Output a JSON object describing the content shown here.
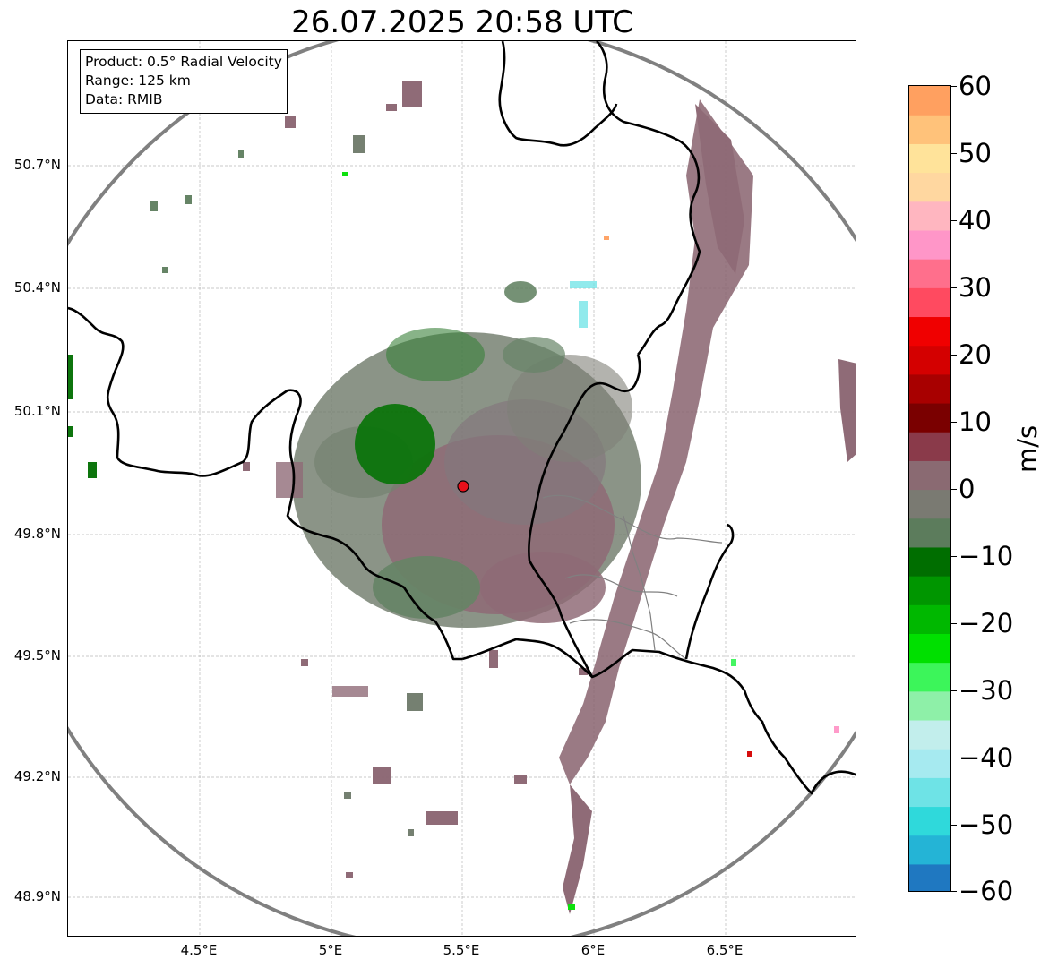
{
  "title": "26.07.2025 20:58 UTC",
  "info": {
    "product": "Product: 0.5° Radial Velocity",
    "range": "Range: 125 km",
    "data": "Data: RMIB"
  },
  "axes": {
    "lat_labels": [
      "50.7°N",
      "50.4°N",
      "50.1°N",
      "49.8°N",
      "49.5°N",
      "49.2°N",
      "48.9°N"
    ],
    "lon_labels": [
      "4.5°E",
      "5°E",
      "5.5°E",
      "6°E",
      "6.5°E"
    ]
  },
  "colorbar": {
    "unit": "m/s",
    "ticks": [
      "60",
      "50",
      "40",
      "30",
      "20",
      "10",
      "0",
      "−10",
      "−20",
      "−30",
      "−40",
      "−50",
      "−60"
    ],
    "range": [
      -60,
      60
    ],
    "colors_bottom_to_top": [
      "#1f78c1",
      "#24b4d6",
      "#2fd9db",
      "#6ee3e6",
      "#a6eaf0",
      "#c2eeec",
      "#8ef0a8",
      "#3cf55a",
      "#00e000",
      "#00b800",
      "#009600",
      "#006e00",
      "#5c7c5c",
      "#7a7a72",
      "#8a6a72",
      "#8a3a4a",
      "#7a0000",
      "#a80000",
      "#d40000",
      "#f00000",
      "#ff4a60",
      "#ff6f8c",
      "#ff96c8",
      "#ffb6c0",
      "#ffd7a0",
      "#ffe39a",
      "#ffc27a",
      "#ffa060"
    ]
  },
  "map": {
    "radar_site": {
      "lat": 49.91,
      "lon": 5.51,
      "color": "#e8101a"
    },
    "range_ring_color": "#808080",
    "border_color": "#000000",
    "colors": {
      "outbound": "#8a6470",
      "inbound": "#006e00",
      "near_zero": "#5e7e5e"
    }
  }
}
